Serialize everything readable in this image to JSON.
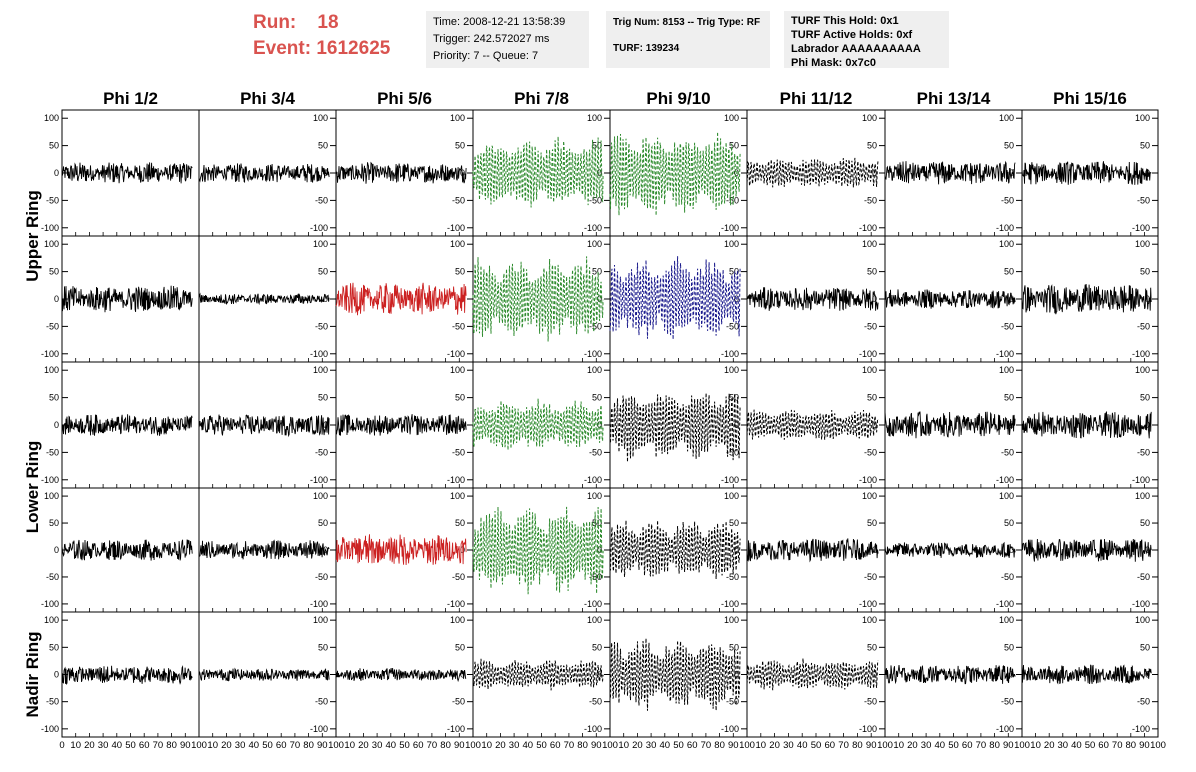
{
  "header": {
    "run_label": "Run:",
    "run_value": "18",
    "event_label": "Event:",
    "event_value": "1612625",
    "time_line": "Time: 2008-12-21 13:58:39",
    "trigger_line": "Trigger: 242.572027 ms",
    "priority_line": "Priority: 7 -- Queue: 7",
    "trig_line": "Trig Num: 8153 -- Trig Type: RF",
    "turf_line": "TURF: 139234",
    "turf_hold_line": "TURF This Hold: 0x1",
    "turf_active_line": "TURF Active Holds: 0xf",
    "labrador_line": "Labrador AAAAAAAAAA",
    "phimask_line": "Phi Mask: 0x7c0",
    "colors": {
      "title_red": "#d9534f",
      "box_bg": "#efefef"
    }
  },
  "chart_data": {
    "type": "line",
    "columns": [
      "Phi 1/2",
      "Phi 3/4",
      "Phi 5/6",
      "Phi 7/8",
      "Phi 9/10",
      "Phi 11/12",
      "Phi 13/14",
      "Phi 15/16"
    ],
    "row_groups": [
      {
        "label": "Upper Ring",
        "rows": [
          0,
          1
        ]
      },
      {
        "label": "Lower Ring",
        "rows": [
          2,
          3
        ]
      },
      {
        "label": "Nadir Ring",
        "rows": [
          4
        ]
      }
    ],
    "xlim": [
      0,
      100
    ],
    "ylim": [
      -115,
      115
    ],
    "x_ticks": [
      0,
      10,
      20,
      30,
      40,
      50,
      60,
      70,
      80,
      90,
      100
    ],
    "y_ticks": [
      -100,
      -50,
      0,
      50,
      100
    ],
    "grid": false,
    "line_colors": {
      "black": "#000000",
      "green": "#2e8b2e",
      "red": "#cc2222",
      "blue": "#1a1a8c"
    },
    "panels": [
      [
        "black",
        "black",
        "black",
        "green",
        "green",
        "black",
        "black",
        "black"
      ],
      [
        "black",
        "black",
        "red",
        "green",
        "blue",
        "black",
        "black",
        "black"
      ],
      [
        "black",
        "black",
        "black",
        "green",
        "black",
        "black",
        "black",
        "black"
      ],
      [
        "black",
        "black",
        "red",
        "green",
        "black",
        "black",
        "black",
        "black"
      ],
      [
        "black",
        "black",
        "black",
        "black",
        "black",
        "black",
        "black",
        "black"
      ]
    ],
    "dashed": [
      [
        false,
        false,
        false,
        true,
        true,
        true,
        false,
        false
      ],
      [
        false,
        false,
        false,
        true,
        true,
        false,
        false,
        false
      ],
      [
        false,
        false,
        false,
        true,
        true,
        true,
        false,
        false
      ],
      [
        false,
        false,
        false,
        true,
        true,
        false,
        false,
        false
      ],
      [
        false,
        false,
        false,
        true,
        true,
        true,
        false,
        false
      ]
    ],
    "amplitude": [
      [
        20,
        18,
        20,
        70,
        80,
        30,
        22,
        22
      ],
      [
        25,
        10,
        30,
        80,
        80,
        22,
        18,
        28
      ],
      [
        20,
        20,
        20,
        50,
        70,
        30,
        25,
        25
      ],
      [
        20,
        18,
        30,
        85,
        60,
        22,
        15,
        22
      ],
      [
        18,
        12,
        12,
        30,
        70,
        30,
        18,
        18
      ]
    ]
  }
}
